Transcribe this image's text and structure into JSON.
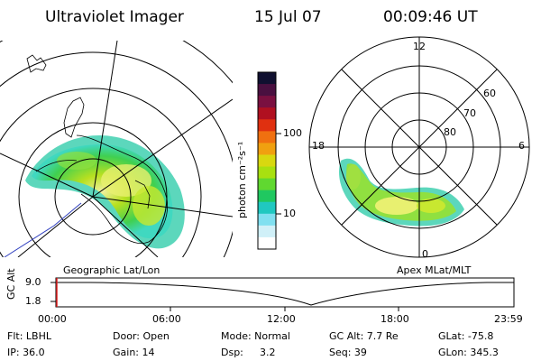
{
  "header": {
    "title": "Ultraviolet Imager",
    "date": "15 Jul 07",
    "time": "00:09:46 UT"
  },
  "colorbar": {
    "label": "photon cm⁻²s⁻¹",
    "ticks": [
      "100",
      "10"
    ],
    "colors": [
      "#101030",
      "#4a1040",
      "#7a1040",
      "#b01020",
      "#e03010",
      "#f07010",
      "#f0a010",
      "#d8d810",
      "#a8e010",
      "#60d830",
      "#20c860",
      "#20c8c0",
      "#80e0f0",
      "#d0f0f8",
      "#ffffff"
    ]
  },
  "left_map": {
    "caption": "Geographic Lat/Lon"
  },
  "right_map": {
    "caption": "Apex MLat/MLT",
    "mlt_labels": {
      "top": "12",
      "left": "18",
      "right": "6",
      "bottom": "0"
    },
    "lat_labels": [
      "60",
      "70",
      "80"
    ]
  },
  "timeline": {
    "ylabel": "GC Alt",
    "yticks": [
      "9.0",
      "1.8"
    ],
    "xticks": [
      "00:00",
      "06:00",
      "12:00",
      "18:00",
      "23:59"
    ]
  },
  "info": {
    "row1": {
      "flt": "Flt: LBHL",
      "door": "Door: Open",
      "mode": "Mode: Normal",
      "gcalt": "GC Alt: 7.7 Re",
      "glat": "GLat: -75.8"
    },
    "row2": {
      "ip": "IP: 36.0",
      "gain": "Gain: 14",
      "dsp_label": "Dsp:",
      "dsp_value": "3.2",
      "seq": "Seq: 39",
      "glon": "GLon: 345.3"
    }
  }
}
